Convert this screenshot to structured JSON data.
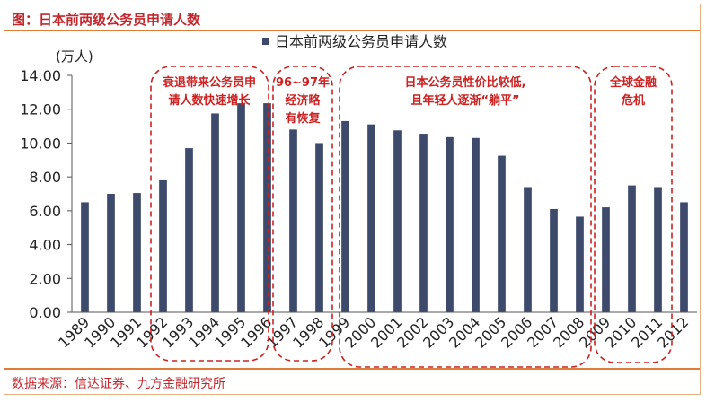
{
  "header": {
    "title": "图：日本前两级公务员申请人数"
  },
  "footer": {
    "source": "数据来源：信达证券、九方金融研究所"
  },
  "colors": {
    "bar": "#3d4a6b",
    "annotation": "#cc2222",
    "accent": "#e07b39",
    "title": "#c0282d"
  },
  "chart_data": {
    "type": "bar",
    "title": "",
    "xlabel": "",
    "ylabel": "(万人)",
    "ylim": [
      0,
      14
    ],
    "yticks": [
      "0.00",
      "2.00",
      "4.00",
      "6.00",
      "8.00",
      "10.00",
      "12.00",
      "14.00"
    ],
    "grid": false,
    "legend": {
      "position": "top",
      "entries": [
        "日本前两级公务员申请人数"
      ]
    },
    "categories": [
      "1989",
      "1990",
      "1991",
      "1992",
      "1993",
      "1994",
      "1995",
      "1996",
      "1997",
      "1998",
      "1999",
      "2000",
      "2001",
      "2002",
      "2003",
      "2004",
      "2005",
      "2006",
      "2007",
      "2008",
      "2009",
      "2010",
      "2011",
      "2012"
    ],
    "series": [
      {
        "name": "日本前两级公务员申请人数",
        "values": [
          6.5,
          7.0,
          7.05,
          7.8,
          9.7,
          11.75,
          12.35,
          12.35,
          10.8,
          10.0,
          11.3,
          11.1,
          10.75,
          10.55,
          10.35,
          10.3,
          9.25,
          7.4,
          6.1,
          5.65,
          6.2,
          7.5,
          7.4,
          6.5
        ]
      }
    ],
    "annotations": [
      {
        "lines": [
          "衰退带来公务员申",
          "请人数快速增长"
        ]
      },
      {
        "lines": [
          "96~97年",
          "经济略",
          "有恢复"
        ]
      },
      {
        "lines": [
          "日本公务员性价比较低,",
          "且年轻人逐渐“躺平”"
        ]
      },
      {
        "lines": [
          "全球金融",
          "危机"
        ]
      }
    ]
  }
}
